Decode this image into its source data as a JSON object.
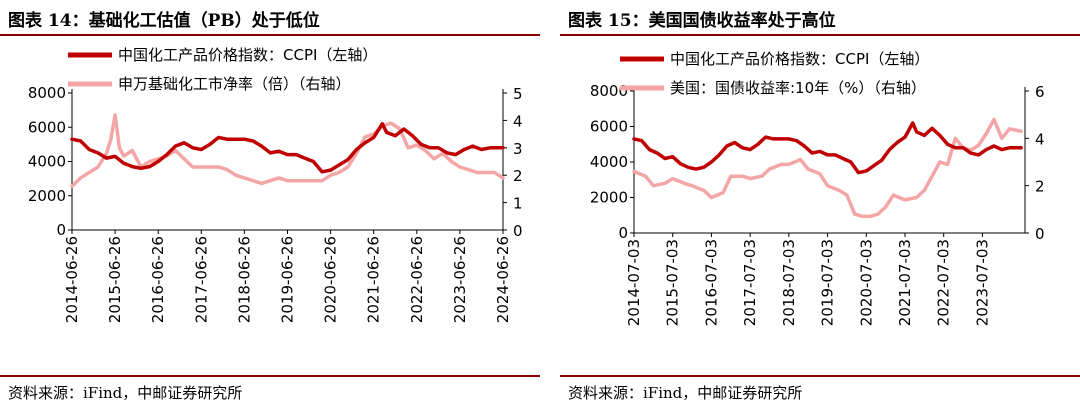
{
  "charts": [
    {
      "title": "图表 14：基础化工估值（PB）处于低位",
      "source": "资料来源：iFind，中邮证券研究所",
      "chart_data": {
        "type": "line",
        "title": "图表 14：基础化工估值（PB）处于低位",
        "x_ticks": [
          "2014-06-26",
          "2015-06-26",
          "2016-06-26",
          "2017-06-26",
          "2018-06-26",
          "2019-06-26",
          "2020-06-26",
          "2021-06-26",
          "2022-06-26",
          "2023-06-26",
          "2024-06-26"
        ],
        "y_left": {
          "min": 0,
          "max": 8000,
          "ticks": [
            "0",
            "2000",
            "4000",
            "6000",
            "8000"
          ]
        },
        "y_right": {
          "min": 0,
          "max": 5,
          "ticks": [
            "0",
            "1",
            "2",
            "3",
            "4",
            "5"
          ]
        },
        "series": [
          {
            "name": "中国化工产品价格指数：CCPI（左轴）",
            "axis": "left",
            "color": "#c00000",
            "x": [
              2014.5,
              2014.7,
              2014.9,
              2015.1,
              2015.3,
              2015.5,
              2015.7,
              2015.9,
              2016.1,
              2016.3,
              2016.5,
              2016.7,
              2016.9,
              2017.1,
              2017.3,
              2017.5,
              2017.7,
              2017.9,
              2018.1,
              2018.3,
              2018.5,
              2018.7,
              2018.9,
              2019.1,
              2019.3,
              2019.5,
              2019.7,
              2019.9,
              2020.1,
              2020.3,
              2020.5,
              2020.7,
              2020.9,
              2021.1,
              2021.3,
              2021.5,
              2021.7,
              2021.8,
              2022.0,
              2022.2,
              2022.4,
              2022.6,
              2022.8,
              2023.0,
              2023.2,
              2023.4,
              2023.6,
              2023.8,
              2024.0,
              2024.2,
              2024.5
            ],
            "y": [
              5300,
              5200,
              4700,
              4500,
              4200,
              4300,
              3900,
              3700,
              3600,
              3700,
              4000,
              4400,
              4900,
              5100,
              4800,
              4700,
              5000,
              5400,
              5300,
              5300,
              5300,
              5200,
              4900,
              4500,
              4600,
              4400,
              4400,
              4200,
              4000,
              3400,
              3500,
              3800,
              4100,
              4700,
              5100,
              5400,
              6200,
              5700,
              5500,
              5900,
              5500,
              5000,
              4800,
              4800,
              4500,
              4400,
              4700,
              4900,
              4700,
              4800,
              4800
            ]
          },
          {
            "name": "申万基础化工市净率（倍）（右轴）",
            "axis": "right",
            "color": "#f4a6a6",
            "x": [
              2014.5,
              2014.7,
              2014.9,
              2015.1,
              2015.3,
              2015.4,
              2015.5,
              2015.6,
              2015.7,
              2015.9,
              2016.1,
              2016.3,
              2016.5,
              2016.7,
              2016.9,
              2017.1,
              2017.3,
              2017.5,
              2017.7,
              2017.9,
              2018.1,
              2018.3,
              2018.5,
              2018.7,
              2018.9,
              2019.1,
              2019.3,
              2019.5,
              2019.7,
              2019.9,
              2020.1,
              2020.3,
              2020.5,
              2020.7,
              2020.9,
              2021.1,
              2021.3,
              2021.5,
              2021.7,
              2021.9,
              2022.1,
              2022.3,
              2022.5,
              2022.7,
              2022.9,
              2023.1,
              2023.3,
              2023.5,
              2023.7,
              2023.9,
              2024.1,
              2024.3,
              2024.5
            ],
            "y": [
              1.6,
              1.9,
              2.1,
              2.3,
              2.8,
              3.3,
              4.2,
              3.0,
              2.7,
              2.9,
              2.3,
              2.5,
              2.6,
              2.7,
              2.9,
              2.6,
              2.3,
              2.3,
              2.3,
              2.3,
              2.2,
              2.0,
              1.9,
              1.8,
              1.7,
              1.8,
              1.9,
              1.8,
              1.8,
              1.8,
              1.8,
              1.8,
              2.0,
              2.1,
              2.3,
              2.8,
              3.4,
              3.5,
              3.8,
              3.9,
              3.7,
              3.0,
              3.1,
              2.9,
              2.6,
              2.8,
              2.5,
              2.3,
              2.2,
              2.1,
              2.1,
              2.1,
              1.9
            ]
          }
        ]
      }
    },
    {
      "title": "图表 15：美国国债收益率处于高位",
      "source": "资料来源：iFind，中邮证券研究所",
      "chart_data": {
        "type": "line",
        "title": "图表 15：美国国债收益率处于高位",
        "x_ticks": [
          "2014-07-03",
          "2015-07-03",
          "2016-07-03",
          "2017-07-03",
          "2018-07-03",
          "2019-07-03",
          "2020-07-03",
          "2021-07-03",
          "2022-07-03",
          "2023-07-03"
        ],
        "y_left": {
          "min": 0,
          "max": 8000,
          "ticks": [
            "0",
            "2000",
            "4000",
            "6000",
            "8000"
          ]
        },
        "y_right": {
          "min": 0,
          "max": 6,
          "ticks": [
            "0",
            "2",
            "4",
            "6"
          ]
        },
        "series": [
          {
            "name": "中国化工产品价格指数：CCPI（左轴）",
            "axis": "left",
            "color": "#c00000",
            "x": [
              2014.5,
              2014.7,
              2014.9,
              2015.1,
              2015.3,
              2015.5,
              2015.7,
              2015.9,
              2016.1,
              2016.3,
              2016.5,
              2016.7,
              2016.9,
              2017.1,
              2017.3,
              2017.5,
              2017.7,
              2017.9,
              2018.1,
              2018.3,
              2018.5,
              2018.7,
              2018.9,
              2019.1,
              2019.3,
              2019.5,
              2019.7,
              2019.9,
              2020.1,
              2020.3,
              2020.5,
              2020.7,
              2020.9,
              2021.1,
              2021.3,
              2021.5,
              2021.7,
              2021.8,
              2022.0,
              2022.2,
              2022.4,
              2022.6,
              2022.8,
              2023.0,
              2023.2,
              2023.4,
              2023.6,
              2023.8,
              2024.0,
              2024.2,
              2024.5
            ],
            "y": [
              5300,
              5200,
              4700,
              4500,
              4200,
              4300,
              3900,
              3700,
              3600,
              3700,
              4000,
              4400,
              4900,
              5100,
              4800,
              4700,
              5000,
              5400,
              5300,
              5300,
              5300,
              5200,
              4900,
              4500,
              4600,
              4400,
              4400,
              4200,
              4000,
              3400,
              3500,
              3800,
              4100,
              4700,
              5100,
              5400,
              6200,
              5700,
              5500,
              5900,
              5500,
              5000,
              4800,
              4800,
              4500,
              4400,
              4700,
              4900,
              4700,
              4800,
              4800
            ]
          },
          {
            "name": "美国：国债收益率:10年（%）（右轴）",
            "axis": "right",
            "color": "#f4a6a6",
            "x": [
              2014.5,
              2014.8,
              2015.0,
              2015.3,
              2015.5,
              2015.8,
              2016.0,
              2016.3,
              2016.5,
              2016.8,
              2017.0,
              2017.3,
              2017.5,
              2017.8,
              2018.0,
              2018.3,
              2018.5,
              2018.8,
              2019.0,
              2019.3,
              2019.5,
              2019.8,
              2020.0,
              2020.2,
              2020.4,
              2020.6,
              2020.8,
              2021.0,
              2021.2,
              2021.5,
              2021.8,
              2022.0,
              2022.2,
              2022.4,
              2022.6,
              2022.8,
              2023.0,
              2023.2,
              2023.4,
              2023.6,
              2023.8,
              2024.0,
              2024.2,
              2024.5
            ],
            "y": [
              2.6,
              2.4,
              2.0,
              2.1,
              2.3,
              2.1,
              2.0,
              1.8,
              1.5,
              1.7,
              2.4,
              2.4,
              2.3,
              2.4,
              2.7,
              2.9,
              2.9,
              3.1,
              2.7,
              2.5,
              2.0,
              1.8,
              1.6,
              0.8,
              0.7,
              0.7,
              0.8,
              1.1,
              1.6,
              1.4,
              1.5,
              1.8,
              2.4,
              3.0,
              2.9,
              4.0,
              3.6,
              3.5,
              3.7,
              4.2,
              4.8,
              4.0,
              4.4,
              4.3
            ]
          }
        ]
      }
    }
  ]
}
